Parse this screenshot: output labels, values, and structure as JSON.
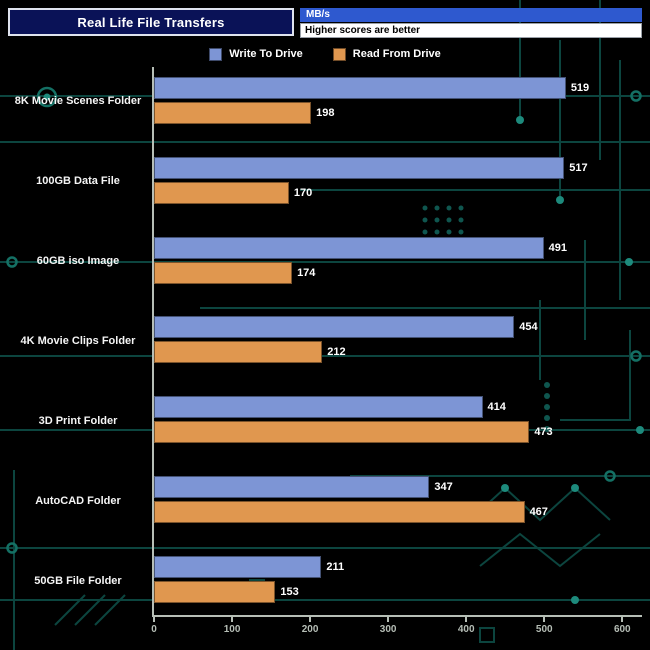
{
  "header": {
    "title": "Real Life File Transfers",
    "unit_label": "MB/s",
    "note": "Higher scores are better"
  },
  "legend": [
    {
      "label": "Write To Drive",
      "color": "#7d95d5"
    },
    {
      "label": "Read From Drive",
      "color": "#e0974f"
    }
  ],
  "chart_data": {
    "type": "bar",
    "orientation": "horizontal",
    "title": "Real Life File Transfers",
    "xlabel": "MB/s",
    "ylabel": "",
    "categories": [
      "8K Movie Scenes Folder",
      "100GB Data File",
      "60GB iso Image",
      "4K Movie Clips Folder",
      "3D Print Folder",
      "AutoCAD Folder",
      "50GB File Folder"
    ],
    "series": [
      {
        "name": "Write To Drive",
        "color": "#7d95d5",
        "values": [
          519,
          517,
          491,
          454,
          414,
          347,
          211
        ]
      },
      {
        "name": "Read From Drive",
        "color": "#e0974f",
        "values": [
          198,
          170,
          174,
          212,
          473,
          467,
          153
        ]
      }
    ],
    "xlim": [
      0,
      615
    ],
    "xticks": [
      0,
      100,
      200,
      300,
      400,
      500,
      600
    ],
    "grid": false,
    "legend_position": "top",
    "note": "Higher scores are better"
  },
  "colors": {
    "background": "#000000",
    "write_bar": "#7d95d5",
    "read_bar": "#e0974f",
    "title_bg": "#0a1257",
    "unit_strip_bg": "#2e59cf",
    "axis": "#b6beb6",
    "circuit_trace": "#0c453f",
    "circuit_node": "#147064"
  }
}
